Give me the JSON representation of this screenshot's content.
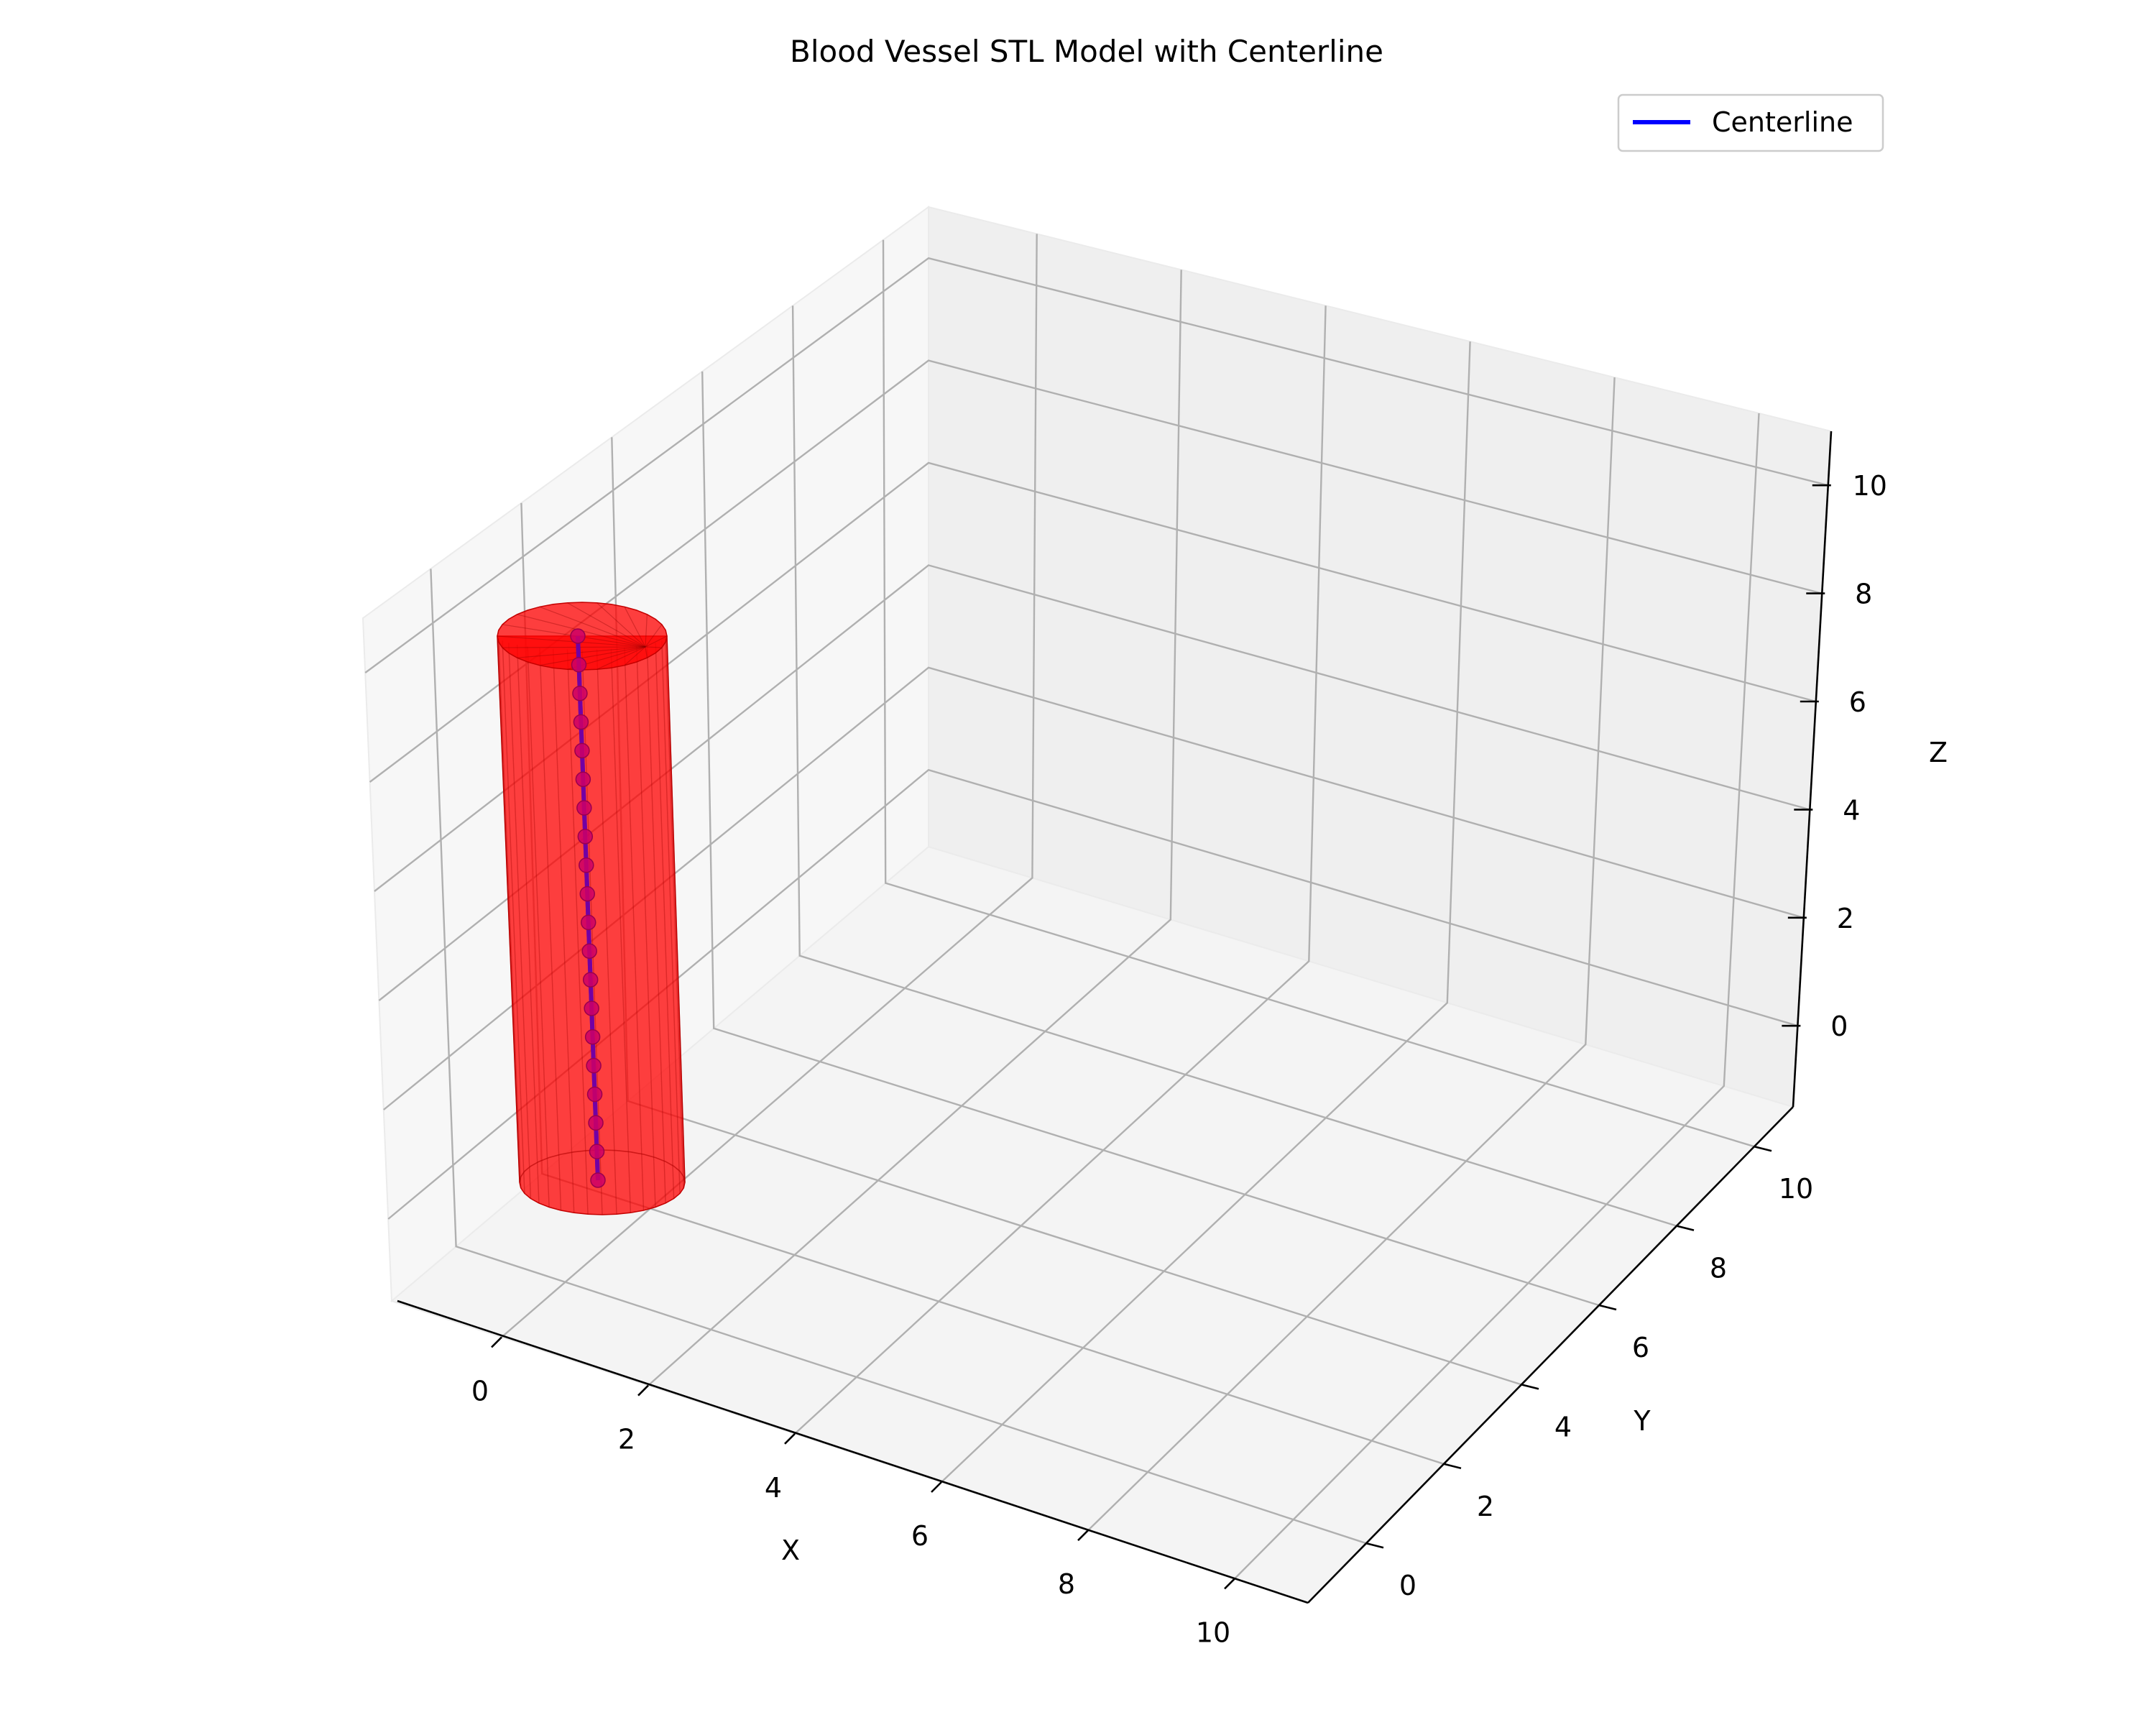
{
  "chart_data": {
    "type": "3d-surface-line",
    "title": "Blood Vessel STL Model with Centerline",
    "xlabel": "X",
    "ylabel": "Y",
    "zlabel": "Z",
    "x_ticks": [
      "0",
      "2",
      "4",
      "6",
      "8",
      "10"
    ],
    "y_ticks": [
      "0",
      "2",
      "4",
      "6",
      "8",
      "10"
    ],
    "z_ticks": [
      "0",
      "2",
      "4",
      "6",
      "8",
      "10"
    ],
    "xlim": [
      -1.5,
      11
    ],
    "ylim": [
      -1.5,
      11
    ],
    "zlim": [
      -1.5,
      11
    ],
    "grid": true,
    "legend": {
      "placement": "top-right",
      "entries": [
        {
          "label": "Centerline",
          "color": "#0000ff"
        }
      ]
    },
    "surface": {
      "name": "vessel",
      "shape": "cylinder",
      "color": "#ff0000",
      "opacity": 0.75,
      "axis_x": 0,
      "axis_y": 0,
      "radius": 1,
      "z_range": [
        0,
        10
      ]
    },
    "centerline": {
      "name": "Centerline",
      "line_color": "#0000ff",
      "marker_color": "#cc0066",
      "x": [
        0,
        0,
        0,
        0,
        0,
        0,
        0,
        0,
        0,
        0,
        0,
        0,
        0,
        0,
        0,
        0,
        0,
        0,
        0,
        0
      ],
      "y": [
        0,
        0,
        0,
        0,
        0,
        0,
        0,
        0,
        0,
        0,
        0,
        0,
        0,
        0,
        0,
        0,
        0,
        0,
        0,
        0
      ],
      "z": [
        0,
        0.526,
        1.053,
        1.579,
        2.105,
        2.632,
        3.158,
        3.684,
        4.211,
        4.737,
        5.263,
        5.789,
        6.316,
        6.842,
        7.368,
        7.895,
        8.421,
        8.947,
        9.474,
        10
      ]
    }
  }
}
